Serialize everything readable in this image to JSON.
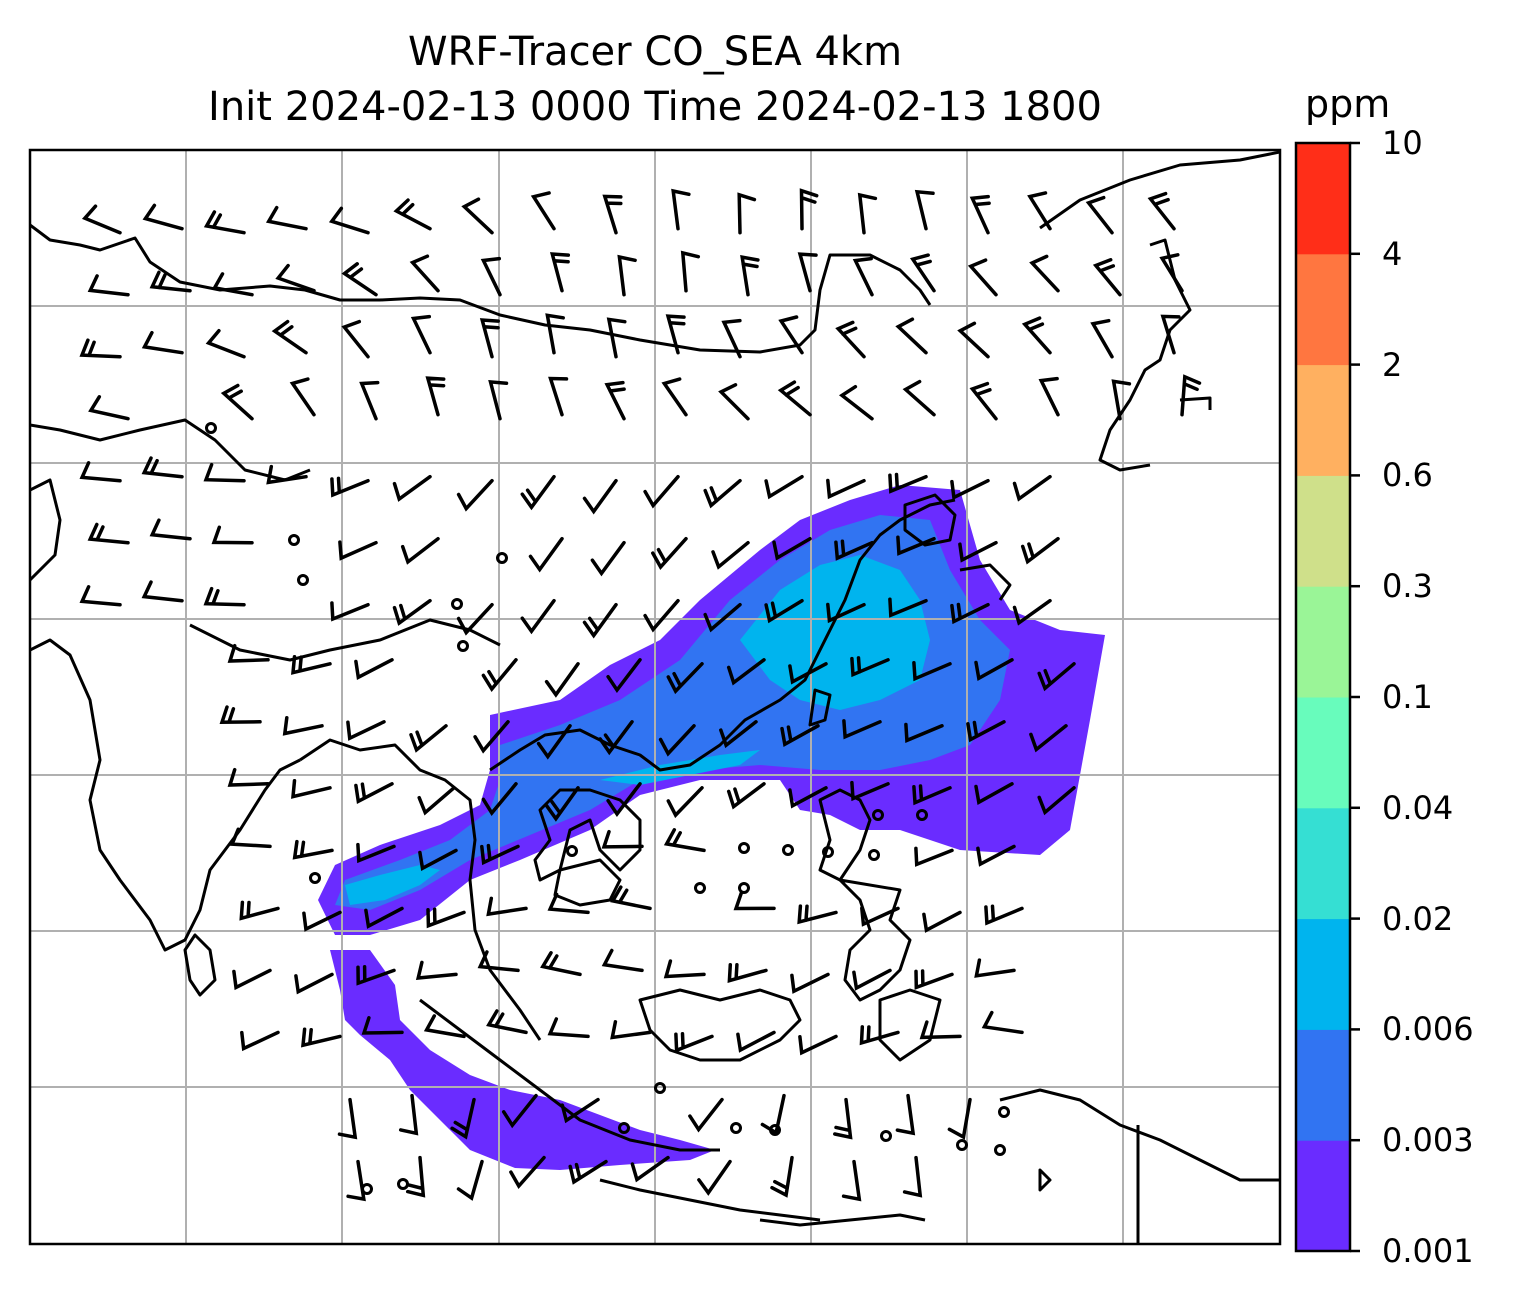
{
  "title": {
    "line1": "WRF-Tracer CO_SEA 4km",
    "line2": "Init 2024-02-13 0000 Time 2024-02-13 1800"
  },
  "colorbar": {
    "unit": "ppm",
    "levels": [
      "0.001",
      "0.003",
      "0.006",
      "0.02",
      "0.04",
      "0.1",
      "0.3",
      "0.6",
      "2",
      "4",
      "10"
    ],
    "colors": [
      "#6a2cff",
      "#3174f2",
      "#00b4ee",
      "#35dfd3",
      "#68fcbc",
      "#9af597",
      "#cfe08a",
      "#ffb060",
      "#ff7640",
      "#ff2e18"
    ]
  },
  "map": {
    "grid": true,
    "wind_barbs": true,
    "coastlines": true
  }
}
